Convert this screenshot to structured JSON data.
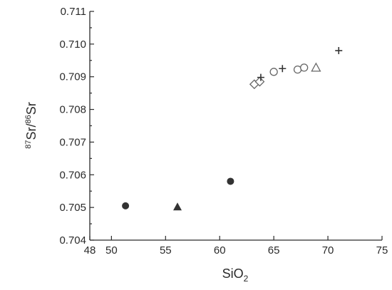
{
  "chart_data": {
    "type": "scatter",
    "xlabel_main": "SiO",
    "xlabel_sub": "2",
    "ylabel_sup1": "87",
    "ylabel_mid": "Sr/",
    "ylabel_sup2": "86",
    "ylabel_end": "Sr",
    "xlim": [
      48,
      75
    ],
    "ylim": [
      0.704,
      0.711
    ],
    "x_ticks": [
      "48",
      "50",
      "55",
      "60",
      "65",
      "70",
      "75"
    ],
    "y_ticks": [
      "0.704",
      "0.705",
      "0.706",
      "0.707",
      "0.708",
      "0.709",
      "0.710",
      "0.711"
    ],
    "grid": false,
    "series": [
      {
        "marker": "filled-circle",
        "color": "#333333",
        "points": [
          {
            "x": 51.3,
            "y": 0.70505
          },
          {
            "x": 61.0,
            "y": 0.7058
          }
        ]
      },
      {
        "marker": "filled-triangle",
        "color": "#333333",
        "points": [
          {
            "x": 56.1,
            "y": 0.70502
          }
        ]
      },
      {
        "marker": "open-diamond",
        "color": "#666666",
        "points": [
          {
            "x": 63.2,
            "y": 0.70877
          },
          {
            "x": 63.7,
            "y": 0.70885
          }
        ]
      },
      {
        "marker": "open-circle",
        "color": "#666666",
        "points": [
          {
            "x": 65.0,
            "y": 0.70915
          },
          {
            "x": 67.2,
            "y": 0.70922
          },
          {
            "x": 67.8,
            "y": 0.70928
          }
        ]
      },
      {
        "marker": "open-triangle",
        "color": "#666666",
        "points": [
          {
            "x": 68.9,
            "y": 0.70928
          }
        ]
      },
      {
        "marker": "plus",
        "color": "#333333",
        "points": [
          {
            "x": 63.8,
            "y": 0.70898
          },
          {
            "x": 65.8,
            "y": 0.70925
          },
          {
            "x": 71.0,
            "y": 0.7098
          }
        ]
      }
    ]
  }
}
